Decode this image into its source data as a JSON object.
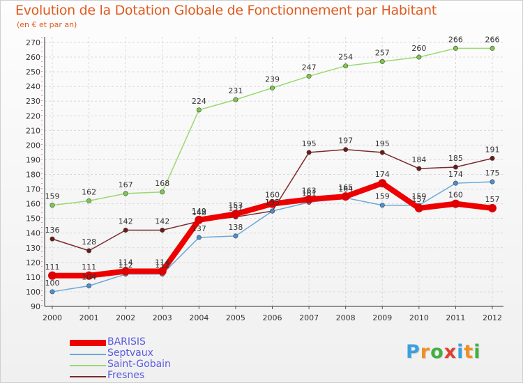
{
  "title": "Evolution de la Dotation Globale de Fonctionnement par Habitant",
  "subtitle": "(en € et par an)",
  "logo": {
    "text": "Proxiti",
    "colors": [
      "#3aa0e0",
      "#f09020",
      "#40b040",
      "#e04030",
      "#3aa0e0",
      "#f09020",
      "#40b040"
    ]
  },
  "chart_data": {
    "type": "line",
    "title": "Evolution de la Dotation Globale de Fonctionnement par Habitant",
    "subtitle": "(en € et par an)",
    "xlabel": "",
    "ylabel": "",
    "ylim": [
      90,
      270
    ],
    "yticks": [
      90,
      100,
      110,
      120,
      130,
      140,
      150,
      160,
      170,
      180,
      190,
      200,
      210,
      220,
      230,
      240,
      250,
      260,
      270
    ],
    "grid": true,
    "legend_position": "bottom-left",
    "categories": [
      "2000",
      "2001",
      "2002",
      "2003",
      "2004",
      "2005",
      "2006",
      "2007",
      "2008",
      "2009",
      "2010",
      "2011",
      "2012"
    ],
    "series": [
      {
        "name": "BARISIS",
        "color": "#ee0000",
        "marker": "#dd0000",
        "thick": true,
        "values": [
          111,
          111,
          114,
          114,
          149,
          153,
          160,
          163,
          165,
          174,
          157,
          160,
          157
        ],
        "labels": [
          "111",
          "111",
          "114",
          "114",
          "149",
          "153",
          "160",
          "163",
          "165",
          "174",
          "157",
          "160",
          "157"
        ]
      },
      {
        "name": "Septvaux",
        "color": "#6aa8d8",
        "marker": "#4a90d0",
        "thick": false,
        "values": [
          100,
          104,
          112,
          112,
          137,
          138,
          155,
          161,
          164,
          159,
          159,
          174,
          175
        ],
        "labels": [
          "100",
          "104",
          "112",
          "112",
          "137",
          "138",
          "155",
          "161",
          "164",
          "159",
          "159",
          "174",
          "175"
        ]
      },
      {
        "name": "Saint-Gobain",
        "color": "#9ad870",
        "marker": "#7cc84c",
        "thick": false,
        "values": [
          159,
          162,
          167,
          168,
          224,
          231,
          239,
          247,
          254,
          257,
          260,
          266,
          266
        ],
        "labels": [
          "159",
          "162",
          "167",
          "168",
          "224",
          "231",
          "239",
          "247",
          "254",
          "257",
          "260",
          "266",
          "266"
        ]
      },
      {
        "name": "Fresnes",
        "color": "#7a2a2a",
        "marker": "#6a1a1a",
        "thick": false,
        "values": [
          136,
          128,
          142,
          142,
          148,
          151,
          155,
          195,
          197,
          195,
          184,
          185,
          191
        ],
        "labels": [
          "136",
          "128",
          "142",
          "142",
          "148",
          "151",
          "155",
          "195",
          "197",
          "195",
          "184",
          "185",
          "191"
        ]
      }
    ]
  }
}
